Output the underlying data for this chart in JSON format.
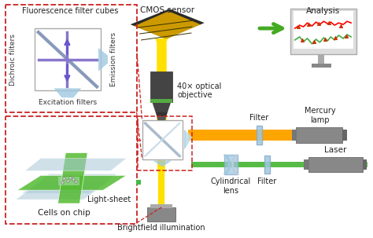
{
  "bg_color": "#ffffff",
  "labels": {
    "cmos": "CMOS sensor",
    "analysis": "Analysis",
    "objective": "40× optical\nobjective",
    "filter1": "Filter",
    "mercury": "Mercury\nlamp",
    "cylindrical": "Cylindrical\nlens",
    "filter2": "Filter",
    "laser": "Laser",
    "brightfield": "Brightfield illumination",
    "fluorescence": "Fluorescence filter cubes",
    "dichroic": "Dichroic filters",
    "emission": "Emission filters",
    "excitation": "Excitation filters",
    "lightsheet": "Light-sheet",
    "cells": "Cells on chip"
  },
  "colors": {
    "yellow": "#FFE000",
    "orange": "#FFA500",
    "green_beam": "#55BB44",
    "light_blue": "#9FC8E0",
    "gray_dark": "#555555",
    "gray_med": "#888888",
    "gray_light": "#BBBBBB",
    "red_dashed": "#CC2222",
    "purple": "#6655CC",
    "green_arrow": "#44AA22",
    "gold": "#CC9900",
    "green_slide": "#55BB33",
    "teal_slide": "#88CCAA",
    "blue_glass": "#A8C8D8"
  }
}
